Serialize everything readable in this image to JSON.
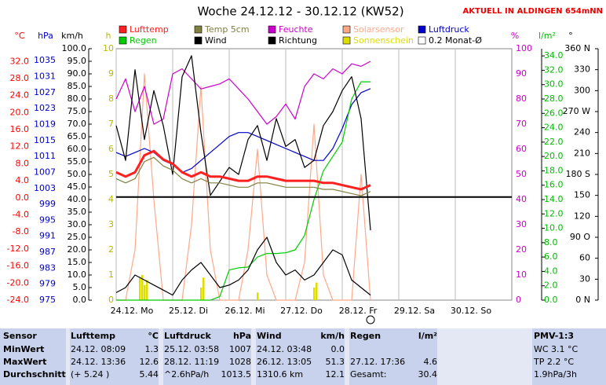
{
  "chart_data": {
    "type": "line",
    "title": "Woche 24.12.12 - 30.12.12 (KW52)",
    "subtitle": "AKTUELL IN ALDINGEN 654mNN",
    "xlim": [
      0,
      168
    ],
    "xticks": [
      {
        "value": 0,
        "label": "24.12.  Mo"
      },
      {
        "value": 24,
        "label": "25.12.  Di"
      },
      {
        "value": 48,
        "label": "26.12.  Mi"
      },
      {
        "value": 72,
        "label": "27.12.  Do"
      },
      {
        "value": 96,
        "label": "28.12.  Fr"
      },
      {
        "value": 120,
        "label": "29.12.  Sa"
      },
      {
        "value": 144,
        "label": "30.12.  So"
      }
    ],
    "x": [
      0,
      4,
      8,
      12,
      16,
      20,
      24,
      28,
      32,
      36,
      40,
      44,
      48,
      52,
      56,
      60,
      64,
      68,
      72,
      76,
      80,
      84,
      88,
      92,
      96,
      100,
      104,
      108
    ],
    "axes": [
      {
        "label": "°C",
        "color": "#ff0000",
        "lim": [
          -24,
          35
        ],
        "ticks": [
          {
            "value": 32,
            "label": "32.0"
          },
          {
            "value": 28,
            "label": "28.0"
          },
          {
            "value": 24,
            "label": "24.0"
          },
          {
            "value": 20,
            "label": "20.0"
          },
          {
            "value": 16,
            "label": "16.0"
          },
          {
            "value": 12,
            "label": "12.0"
          },
          {
            "value": 8,
            "label": "8.0"
          },
          {
            "value": 4,
            "label": "4.0"
          },
          {
            "value": 0,
            "label": "0.0"
          },
          {
            "value": -4,
            "label": "-4.0"
          },
          {
            "value": -8,
            "label": "-8.0"
          },
          {
            "value": -12,
            "label": "-12.0"
          },
          {
            "value": -16,
            "label": "-16.0"
          },
          {
            "value": -20,
            "label": "-20.0"
          },
          {
            "value": -24,
            "label": "-24.0"
          }
        ]
      },
      {
        "label": "hPa",
        "color": "#0000cc",
        "lim": [
          975,
          1038
        ],
        "ticks": [
          1035,
          1031,
          1027,
          1023,
          1019,
          1015,
          1011,
          1007,
          1003,
          999,
          995,
          991,
          987,
          983,
          979,
          975
        ]
      },
      {
        "label": "km/h",
        "color": "#000000",
        "lim": [
          0,
          100
        ],
        "ticks": [
          {
            "value": 100,
            "label": "100.0"
          },
          {
            "value": 95,
            "label": "95.0"
          },
          {
            "value": 90,
            "label": "90.0"
          },
          {
            "value": 85,
            "label": "85.0"
          },
          {
            "value": 80,
            "label": "80.0"
          },
          {
            "value": 75,
            "label": "75.0"
          },
          {
            "value": 70,
            "label": "70.0"
          },
          {
            "value": 65,
            "label": "65.0"
          },
          {
            "value": 60,
            "label": "60.0"
          },
          {
            "value": 55,
            "label": "55.0"
          },
          {
            "value": 50,
            "label": "50.0"
          },
          {
            "value": 45,
            "label": "45.0"
          },
          {
            "value": 40,
            "label": "40.0"
          },
          {
            "value": 35,
            "label": "35.0"
          },
          {
            "value": 30,
            "label": "30.0"
          },
          {
            "value": 25,
            "label": "25.0"
          },
          {
            "value": 20,
            "label": "20.0"
          },
          {
            "value": 15,
            "label": "15.0"
          },
          {
            "value": 10,
            "label": "10.0"
          },
          {
            "value": 5,
            "label": "5.0"
          },
          {
            "value": 0,
            "label": "0.0"
          }
        ]
      },
      {
        "label": "h",
        "color": "#b8b800",
        "lim": [
          0,
          10
        ],
        "ticks": [
          10,
          9,
          8,
          7,
          6,
          5,
          4,
          3,
          2,
          1,
          0
        ]
      },
      {
        "label": "%",
        "color": "#cc00cc",
        "lim": [
          0,
          100
        ],
        "ticks": [
          100,
          90,
          80,
          70,
          60,
          50,
          40,
          30,
          20,
          10,
          0
        ]
      },
      {
        "label": "l/m²",
        "color": "#00bb00",
        "lim": [
          0,
          35
        ],
        "ticks": [
          {
            "value": 34,
            "label": "34.0"
          },
          {
            "value": 32,
            "label": "32.0"
          },
          {
            "value": 30,
            "label": "30.0"
          },
          {
            "value": 28,
            "label": "28.0"
          },
          {
            "value": 26,
            "label": "26.0"
          },
          {
            "value": 24,
            "label": "24.0"
          },
          {
            "value": 22,
            "label": "22.0"
          },
          {
            "value": 20,
            "label": "20.0"
          },
          {
            "value": 18,
            "label": "18.0"
          },
          {
            "value": 16,
            "label": "16.0"
          },
          {
            "value": 14,
            "label": "14.0"
          },
          {
            "value": 12,
            "label": "12.0"
          },
          {
            "value": 10,
            "label": "10.0"
          },
          {
            "value": 8,
            "label": "8.0"
          },
          {
            "value": 6,
            "label": "6.0"
          },
          {
            "value": 4,
            "label": "4.0"
          },
          {
            "value": 2,
            "label": "2.0"
          },
          {
            "value": 0,
            "label": "0.0"
          }
        ]
      },
      {
        "label": "°",
        "color": "#000000",
        "lim": [
          0,
          360
        ],
        "ticks": [
          {
            "value": 360,
            "label": "360 N"
          },
          330,
          300,
          {
            "value": 270,
            "label": "270 W"
          },
          240,
          210,
          {
            "value": 180,
            "label": "180 S"
          },
          150,
          120,
          {
            "value": 90,
            "label": "90 O"
          },
          60,
          30,
          {
            "value": 0,
            "label": "0 N"
          }
        ]
      }
    ],
    "series": [
      {
        "name": "Solarsensor",
        "color": "#ffa888",
        "axis": 4,
        "type": "line",
        "values": [
          0,
          0,
          20,
          90,
          40,
          0,
          0,
          0,
          30,
          85,
          20,
          0,
          0,
          0,
          20,
          60,
          10,
          0,
          0,
          0,
          15,
          70,
          10,
          0,
          0,
          0,
          50,
          0
        ]
      },
      {
        "name": "Sonnenschein",
        "color": "#dddd00",
        "axis": 3,
        "type": "bar",
        "x": [
          10,
          11,
          12,
          13,
          36,
          37,
          60,
          84,
          85
        ],
        "values": [
          0.9,
          1,
          0.6,
          0.8,
          0.5,
          0.9,
          0.3,
          0.5,
          0.7
        ]
      },
      {
        "name": "Feuchte",
        "color": "#cc00cc",
        "axis": 4,
        "type": "line",
        "values": [
          80,
          88,
          75,
          85,
          70,
          72,
          90,
          92,
          88,
          84,
          85,
          86,
          88,
          84,
          80,
          75,
          70,
          73,
          78,
          72,
          85,
          90,
          88,
          92,
          90,
          94,
          93,
          95
        ]
      },
      {
        "name": "Luftdruck",
        "color": "#0000cc",
        "axis": 1,
        "type": "line",
        "values": [
          1012,
          1011,
          1012,
          1013,
          1012,
          1010,
          1009,
          1007,
          1008,
          1010,
          1012,
          1014,
          1016,
          1017,
          1017,
          1016,
          1015,
          1014,
          1013,
          1012,
          1011,
          1010,
          1010,
          1013,
          1018,
          1024,
          1027,
          1028
        ]
      },
      {
        "name": "Regen",
        "color": "#00cc00",
        "axis": 5,
        "type": "line",
        "values": [
          0,
          0,
          0,
          0,
          0,
          0,
          0,
          0,
          0,
          0,
          0,
          0.5,
          4.2,
          4.5,
          4.6,
          6,
          6.5,
          6.5,
          6.6,
          7,
          9,
          14,
          18,
          20,
          22,
          28,
          30.4,
          30.4
        ]
      },
      {
        "name": "Richtung",
        "color": "#000000",
        "axis": 6,
        "type": "line",
        "values": [
          250,
          200,
          330,
          230,
          300,
          250,
          180,
          320,
          350,
          240,
          150,
          170,
          190,
          180,
          230,
          250,
          200,
          260,
          220,
          230,
          190,
          200,
          250,
          270,
          300,
          320,
          260,
          100
        ]
      },
      {
        "name": "Wind",
        "color": "#000000",
        "axis": 2,
        "type": "line",
        "values": [
          3,
          5,
          10,
          8,
          6,
          4,
          2,
          8,
          12,
          15,
          10,
          5,
          6,
          8,
          12,
          20,
          25,
          15,
          10,
          12,
          8,
          10,
          15,
          20,
          18,
          8,
          5,
          2
        ]
      },
      {
        "name": "Temp 5cm",
        "color": "#808040",
        "axis": 0,
        "type": "line",
        "values": [
          4.5,
          3.5,
          4.5,
          8.5,
          9.5,
          7.5,
          6.5,
          4.5,
          3.5,
          4.5,
          3.5,
          3.5,
          3,
          2.5,
          2.5,
          3.5,
          3.5,
          3,
          2.5,
          2.5,
          2.5,
          2.5,
          2,
          2,
          1.5,
          1,
          0.5,
          1.5
        ]
      },
      {
        "name": "Lufttemp",
        "color": "#ff2020",
        "axis": 0,
        "type": "line",
        "values": [
          6,
          5,
          6,
          10,
          11,
          9,
          8,
          6,
          5,
          6,
          5,
          5,
          4.5,
          4,
          4,
          5,
          5,
          4.5,
          4,
          4,
          4,
          4,
          3.5,
          3.5,
          3,
          2.5,
          2,
          3
        ]
      },
      {
        "name": "0.2 Monat-Ø",
        "color": "#000000",
        "axis": 0,
        "type": "hline",
        "value": 0.2
      }
    ]
  },
  "table": {
    "columns": [
      {
        "title": "Sensor",
        "cells": [
          [
            "MinWert"
          ],
          [
            "MaxWert"
          ],
          [
            "Durchschnitt"
          ]
        ]
      },
      {
        "title": "Lufttemp",
        "unit": "°C",
        "cells": [
          [
            "24.12.  08:09",
            "1.3"
          ],
          [
            "24.12.  13:36",
            "12.6"
          ],
          [
            "(+ 5.24 )",
            "5.44"
          ]
        ]
      },
      {
        "title": "Luftdruck",
        "unit": "hPa",
        "cells": [
          [
            "25.12.  03:58",
            "1007"
          ],
          [
            "28.12.  11:19",
            "1028"
          ],
          [
            "^2.6hPa/h",
            "1013.5"
          ]
        ]
      },
      {
        "title": "Wind",
        "unit": "km/h",
        "cells": [
          [
            "24.12.  03:48",
            "0.0"
          ],
          [
            "26.12.  13:05",
            "51.3"
          ],
          [
            "1310.6 km",
            "12.1"
          ]
        ]
      },
      {
        "title": "Regen",
        "unit": "l/m²",
        "cells": [
          null,
          [
            "27.12.  17:36",
            "4.6"
          ],
          [
            "Gesamt:",
            "30.4"
          ]
        ]
      },
      {
        "title": "PMV-1:3",
        "cells": [
          [
            "WC 3.1 °C"
          ],
          [
            "TP 2.2 °C"
          ],
          [
            "1.9hPa/3h"
          ]
        ]
      }
    ]
  }
}
